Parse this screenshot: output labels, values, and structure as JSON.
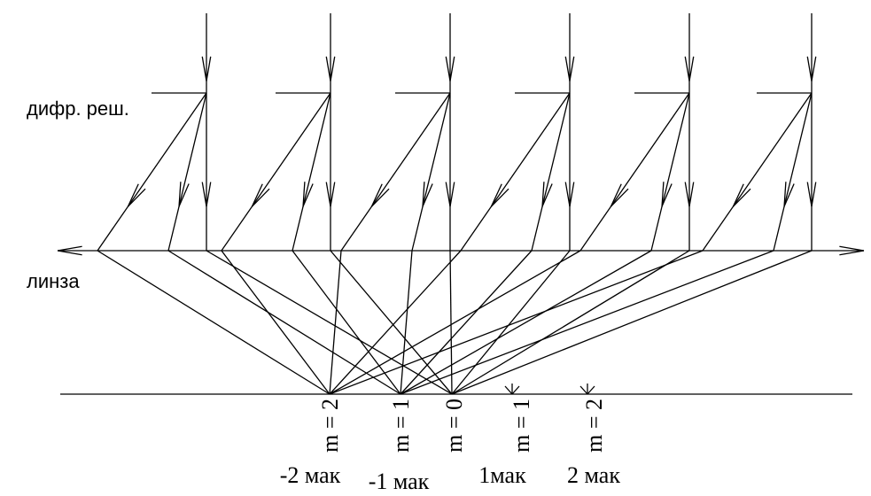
{
  "grating_label": "дифр. реш.",
  "lens_label": "линза",
  "orders": [
    {
      "m": "m = 2",
      "label": "-2 мак"
    },
    {
      "m": "m = 1",
      "label": "-1 мак"
    },
    {
      "m": "m = 0"
    },
    {
      "m": "m = 1",
      "label": "1мак"
    },
    {
      "m": "m = 2",
      "label": "2 мак"
    }
  ]
}
